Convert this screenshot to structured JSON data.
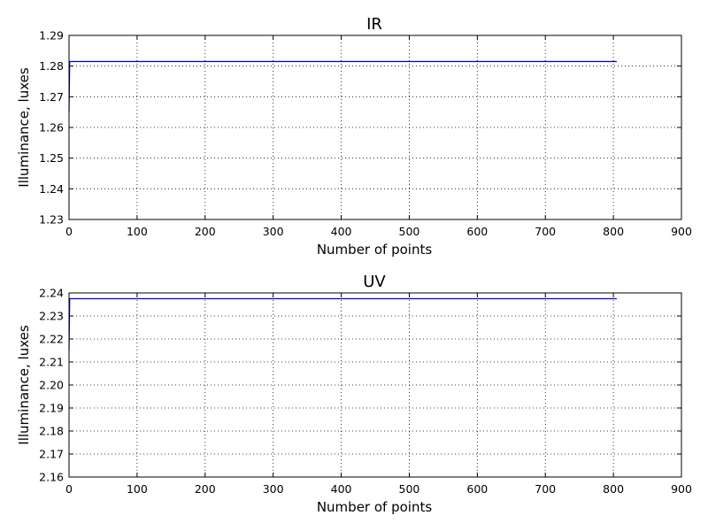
{
  "chart_data": [
    {
      "type": "line",
      "title": "IR",
      "xlabel": "Number of points",
      "ylabel": "Illuminance, luxes",
      "xlim": [
        0,
        900
      ],
      "ylim": [
        1.23,
        1.29
      ],
      "x_ticks": [
        "0",
        "100",
        "200",
        "300",
        "400",
        "500",
        "600",
        "700",
        "800",
        "900"
      ],
      "y_ticks": [
        "1.23",
        "1.24",
        "1.25",
        "1.26",
        "1.27",
        "1.28",
        "1.29"
      ],
      "grid": true,
      "color": "#0000cc",
      "series": [
        {
          "x": [
            0,
            1,
            805
          ],
          "y": [
            1.265,
            1.2815,
            1.2815
          ]
        }
      ]
    },
    {
      "type": "line",
      "title": "UV",
      "xlabel": "Number of points",
      "ylabel": "Illuminance, luxes",
      "xlim": [
        0,
        900
      ],
      "ylim": [
        2.16,
        2.24
      ],
      "x_ticks": [
        "0",
        "100",
        "200",
        "300",
        "400",
        "500",
        "600",
        "700",
        "800",
        "900"
      ],
      "y_ticks": [
        "2.16",
        "2.17",
        "2.18",
        "2.19",
        "2.20",
        "2.21",
        "2.22",
        "2.23",
        "2.24"
      ],
      "grid": true,
      "color": "#0000cc",
      "series": [
        {
          "x": [
            0,
            1,
            805
          ],
          "y": [
            2.215,
            2.2375,
            2.2375
          ]
        }
      ]
    }
  ]
}
